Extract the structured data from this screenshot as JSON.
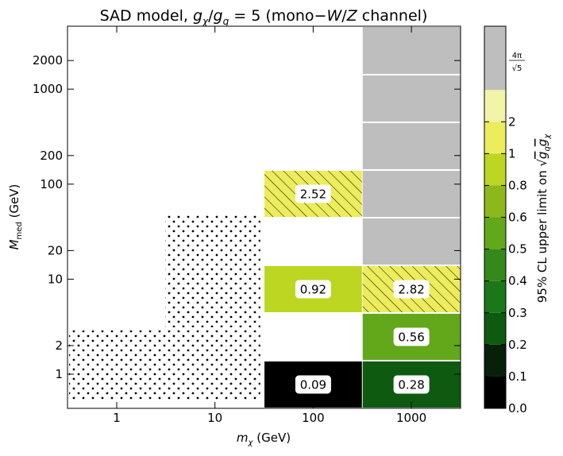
{
  "chart_data": {
    "type": "heatmap",
    "title_parts": {
      "pre": "SAD model, ",
      "g": "g",
      "chi": "χ",
      "slash": "/",
      "q": "q",
      "eq": " = 5 (mono−",
      "W": "W",
      "slash2": "/",
      "Z": "Z",
      "post": "  channel)"
    },
    "xlabel": {
      "m": "m",
      "sub": "χ",
      "unit": " (GeV)"
    },
    "ylabel": {
      "M": "M",
      "sub": "med",
      "unit": " (GeV)"
    },
    "x_scale": "log",
    "y_scale": "log",
    "x_ticks": [
      {
        "value": 1,
        "label": "1"
      },
      {
        "value": 10,
        "label": "10"
      },
      {
        "value": 100,
        "label": "100"
      },
      {
        "value": 1000,
        "label": "1000"
      }
    ],
    "y_ticks": [
      {
        "value": 1,
        "label": "1"
      },
      {
        "value": 2,
        "label": "2"
      },
      {
        "value": 10,
        "label": "10"
      },
      {
        "value": 20,
        "label": "20"
      },
      {
        "value": 100,
        "label": "100"
      },
      {
        "value": 200,
        "label": "200"
      },
      {
        "value": 1000,
        "label": "1000"
      },
      {
        "value": 2000,
        "label": "2000"
      }
    ],
    "cells": [
      {
        "mchi": 1000,
        "mmed": 1,
        "value": 0.28,
        "label": "0.28",
        "color": "#0e5a10",
        "hatch": false
      },
      {
        "mchi": 1000,
        "mmed": 2,
        "value": 0.56,
        "label": "0.56",
        "color": "#62a81a",
        "hatch": false
      },
      {
        "mchi": 1000,
        "mmed": 10,
        "value": 2.82,
        "label": "2.82",
        "color": "#ecec5c",
        "hatch": true
      },
      {
        "mchi": 1000,
        "mmed": 20,
        "value": null,
        "label": "",
        "color": "#bebebe",
        "hatch": false
      },
      {
        "mchi": 1000,
        "mmed": 100,
        "value": null,
        "label": "",
        "color": "#bebebe",
        "hatch": false
      },
      {
        "mchi": 1000,
        "mmed": 200,
        "value": null,
        "label": "",
        "color": "#bebebe",
        "hatch": false
      },
      {
        "mchi": 1000,
        "mmed": 1000,
        "value": null,
        "label": "",
        "color": "#bebebe",
        "hatch": false
      },
      {
        "mchi": 1000,
        "mmed": 2000,
        "value": null,
        "label": "",
        "color": "#bebebe",
        "hatch": false
      },
      {
        "mchi": 100,
        "mmed": 1,
        "value": 0.09,
        "label": "0.09",
        "color": "#000000",
        "hatch": false
      },
      {
        "mchi": 100,
        "mmed": 10,
        "value": 0.92,
        "label": "0.92",
        "color": "#bcd622",
        "hatch": false
      },
      {
        "mchi": 100,
        "mmed": 100,
        "value": 2.52,
        "label": "2.52",
        "color": "#ecec5c",
        "hatch": true
      }
    ],
    "dotted_regions": [
      {
        "x_from": 0.3,
        "x_to": 30,
        "y_from": 0.5,
        "y_to": 3
      },
      {
        "x_from": 3,
        "x_to": 30,
        "y_from": 3,
        "y_to": 50
      }
    ],
    "colorbar": {
      "label_pre": "95% CL upper limit on ",
      "label_g": "g",
      "label_q": "q",
      "label_chi": "χ",
      "segments": [
        "#000000",
        "#06200a",
        "#0e5a10",
        "#1a7818",
        "#338a1a",
        "#62a81a",
        "#8cb81c",
        "#bcd622",
        "#ecec5c",
        "#f2f4a8",
        "#bebebe"
      ],
      "ticks": [
        {
          "label": "0.0"
        },
        {
          "label": "0.1"
        },
        {
          "label": "0.2"
        },
        {
          "label": "0.3"
        },
        {
          "label": "0.4"
        },
        {
          "label": "0.5"
        },
        {
          "label": "0.6"
        },
        {
          "label": "0.8"
        },
        {
          "label": "1"
        },
        {
          "label": "2"
        }
      ],
      "top_tick": {
        "num": "4π",
        "den": "5"
      }
    }
  }
}
